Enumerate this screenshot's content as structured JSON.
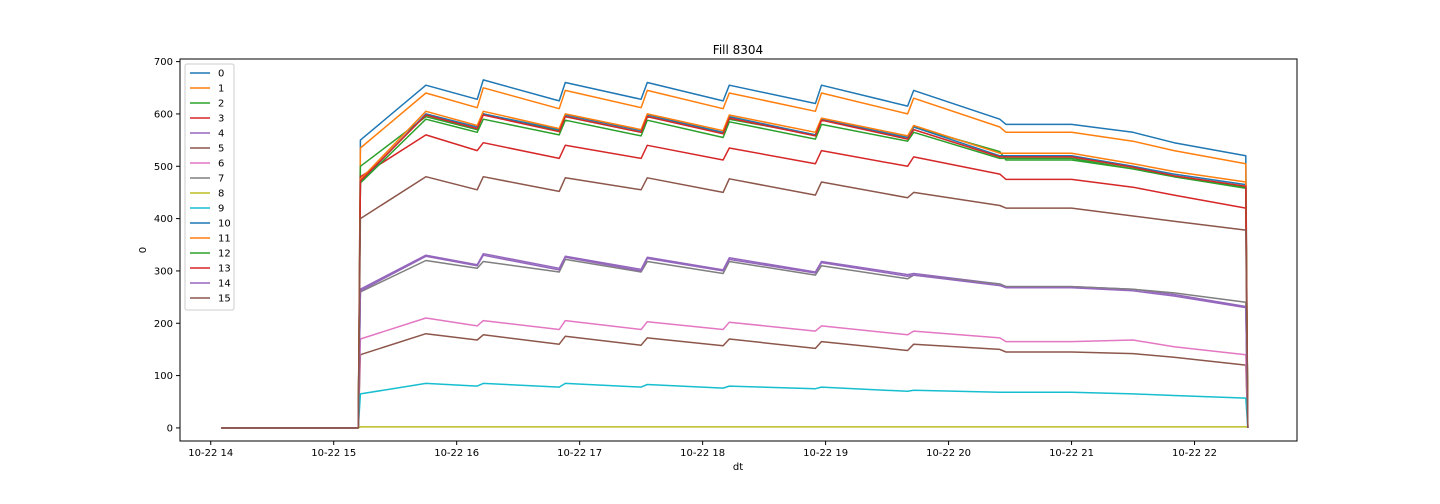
{
  "chart_data": {
    "type": "line",
    "title": "Fill 8304",
    "xlabel": "dt",
    "ylabel": "0",
    "xlim": [
      "2022-10-22 13:45",
      "2022-10-22 22:50"
    ],
    "ylim": [
      -25,
      705
    ],
    "x_ticks": [
      {
        "t": "2022-10-22 14:00",
        "label": "10-22 14"
      },
      {
        "t": "2022-10-22 15:00",
        "label": "10-22 15"
      },
      {
        "t": "2022-10-22 16:00",
        "label": "10-22 16"
      },
      {
        "t": "2022-10-22 17:00",
        "label": "10-22 17"
      },
      {
        "t": "2022-10-22 18:00",
        "label": "10-22 18"
      },
      {
        "t": "2022-10-22 19:00",
        "label": "10-22 19"
      },
      {
        "t": "2022-10-22 20:00",
        "label": "10-22 20"
      },
      {
        "t": "2022-10-22 21:00",
        "label": "10-22 21"
      },
      {
        "t": "2022-10-22 22:00",
        "label": "10-22 22"
      }
    ],
    "y_ticks": [
      0,
      100,
      200,
      300,
      400,
      500,
      600,
      700
    ],
    "grid": false,
    "legend_position": "upper-left",
    "shared_x": [
      "2022-10-22 14:05",
      "2022-10-22 15:12",
      "2022-10-22 15:13",
      "2022-10-22 15:45",
      "2022-10-22 16:10",
      "2022-10-22 16:13",
      "2022-10-22 16:50",
      "2022-10-22 16:53",
      "2022-10-22 17:30",
      "2022-10-22 17:33",
      "2022-10-22 18:10",
      "2022-10-22 18:13",
      "2022-10-22 18:55",
      "2022-10-22 18:58",
      "2022-10-22 19:40",
      "2022-10-22 19:43",
      "2022-10-22 20:25",
      "2022-10-22 20:28",
      "2022-10-22 21:00",
      "2022-10-22 21:30",
      "2022-10-22 21:50",
      "2022-10-22 22:25",
      "2022-10-22 22:26"
    ],
    "series": [
      {
        "name": "0",
        "color": "#1f77b4",
        "values": [
          0,
          0,
          550,
          655,
          628,
          665,
          625,
          660,
          628,
          660,
          625,
          655,
          620,
          655,
          615,
          645,
          590,
          580,
          580,
          565,
          545,
          520,
          0
        ]
      },
      {
        "name": "1",
        "color": "#ff7f0e",
        "values": [
          0,
          0,
          535,
          640,
          612,
          650,
          610,
          645,
          612,
          645,
          610,
          640,
          605,
          640,
          600,
          630,
          575,
          565,
          565,
          548,
          530,
          505,
          0
        ]
      },
      {
        "name": "2",
        "color": "#2ca02c",
        "values": [
          0,
          0,
          500,
          595,
          570,
          600,
          568,
          595,
          565,
          595,
          563,
          590,
          560,
          588,
          555,
          575,
          528,
          512,
          512,
          495,
          480,
          458,
          0
        ]
      },
      {
        "name": "3",
        "color": "#d62728",
        "values": [
          0,
          0,
          480,
          560,
          530,
          545,
          515,
          540,
          515,
          540,
          512,
          535,
          505,
          530,
          500,
          518,
          485,
          475,
          475,
          460,
          445,
          420,
          0
        ]
      },
      {
        "name": "4",
        "color": "#9467bd",
        "values": [
          0,
          0,
          265,
          330,
          312,
          333,
          305,
          328,
          303,
          326,
          302,
          325,
          298,
          318,
          293,
          295,
          275,
          270,
          270,
          265,
          255,
          232,
          0
        ]
      },
      {
        "name": "5",
        "color": "#8c564b",
        "values": [
          0,
          0,
          140,
          180,
          168,
          178,
          160,
          175,
          158,
          172,
          157,
          170,
          152,
          165,
          148,
          160,
          150,
          145,
          145,
          142,
          135,
          120,
          0
        ]
      },
      {
        "name": "6",
        "color": "#e377c2",
        "values": [
          0,
          0,
          170,
          210,
          195,
          205,
          188,
          205,
          188,
          203,
          188,
          202,
          185,
          195,
          178,
          185,
          172,
          165,
          165,
          168,
          155,
          140,
          0
        ]
      },
      {
        "name": "7",
        "color": "#7f7f7f",
        "values": [
          0,
          0,
          260,
          320,
          305,
          318,
          298,
          322,
          298,
          318,
          295,
          318,
          292,
          310,
          285,
          292,
          275,
          270,
          270,
          265,
          258,
          240,
          0
        ]
      },
      {
        "name": "8",
        "color": "#bcbd22",
        "values": [
          0,
          0,
          2,
          2,
          2,
          2,
          2,
          2,
          2,
          2,
          2,
          2,
          2,
          2,
          2,
          2,
          2,
          2,
          2,
          2,
          2,
          2,
          2
        ]
      },
      {
        "name": "9",
        "color": "#17becf",
        "values": [
          0,
          0,
          65,
          85,
          80,
          85,
          78,
          85,
          78,
          83,
          76,
          80,
          75,
          78,
          70,
          72,
          68,
          68,
          68,
          65,
          62,
          57,
          0
        ]
      },
      {
        "name": "10",
        "color": "#1f77b4",
        "values": [
          0,
          0,
          470,
          600,
          575,
          600,
          570,
          598,
          568,
          598,
          565,
          595,
          560,
          590,
          555,
          575,
          520,
          520,
          520,
          500,
          485,
          465,
          0
        ]
      },
      {
        "name": "11",
        "color": "#ff7f0e",
        "values": [
          0,
          0,
          475,
          605,
          578,
          605,
          572,
          600,
          570,
          600,
          568,
          598,
          565,
          592,
          558,
          578,
          525,
          525,
          525,
          505,
          490,
          470,
          0
        ]
      },
      {
        "name": "12",
        "color": "#2ca02c",
        "values": [
          0,
          0,
          468,
          590,
          565,
          590,
          560,
          588,
          558,
          588,
          555,
          585,
          552,
          580,
          548,
          565,
          515,
          515,
          515,
          495,
          480,
          460,
          0
        ]
      },
      {
        "name": "13",
        "color": "#d62728",
        "values": [
          0,
          0,
          472,
          598,
          572,
          598,
          566,
          595,
          565,
          595,
          562,
          592,
          558,
          588,
          552,
          570,
          518,
          518,
          518,
          498,
          482,
          462,
          0
        ]
      },
      {
        "name": "14",
        "color": "#9467bd",
        "values": [
          0,
          0,
          262,
          328,
          310,
          330,
          302,
          326,
          300,
          324,
          300,
          322,
          296,
          316,
          290,
          292,
          272,
          268,
          268,
          262,
          252,
          230,
          0
        ]
      },
      {
        "name": "15",
        "color": "#8c564b",
        "values": [
          0,
          0,
          400,
          480,
          455,
          480,
          452,
          478,
          455,
          478,
          450,
          476,
          445,
          470,
          440,
          450,
          425,
          420,
          420,
          405,
          395,
          378,
          0
        ]
      }
    ]
  }
}
